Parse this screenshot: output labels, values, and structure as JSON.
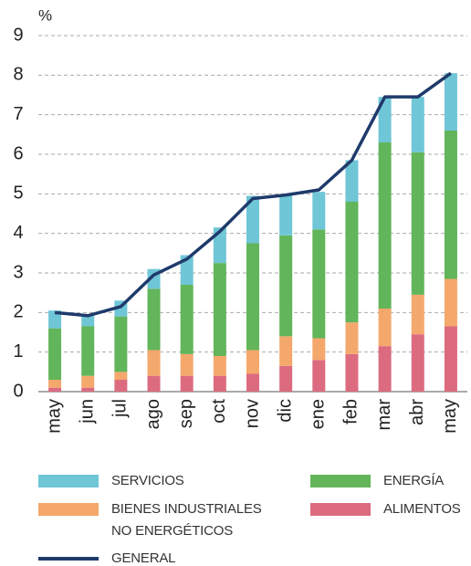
{
  "chart_data": {
    "type": "bar",
    "stacked": true,
    "y_unit": "%",
    "categories": [
      "may",
      "jun",
      "jul",
      "ago",
      "sep",
      "oct",
      "nov",
      "dic",
      "ene",
      "feb",
      "mar",
      "abr",
      "may"
    ],
    "ylim": [
      0,
      9
    ],
    "yticks": [
      0,
      1,
      2,
      3,
      4,
      5,
      6,
      7,
      8,
      9
    ],
    "grid": true,
    "series": [
      {
        "name": "ALIMENTOS",
        "color": "#dc6b80",
        "values": [
          0.1,
          0.1,
          0.3,
          0.4,
          0.4,
          0.4,
          0.45,
          0.65,
          0.8,
          0.95,
          1.15,
          1.45,
          1.65
        ]
      },
      {
        "name": "BIENES INDUSTRIALES\nNO ENERGÉTICOS",
        "color": "#f4a86c",
        "values": [
          0.2,
          0.3,
          0.2,
          0.65,
          0.55,
          0.5,
          0.6,
          0.75,
          0.55,
          0.8,
          0.95,
          1.0,
          1.2
        ]
      },
      {
        "name": "ENERGÍA",
        "color": "#62b55a",
        "values": [
          1.3,
          1.25,
          1.4,
          1.55,
          1.75,
          2.35,
          2.7,
          2.55,
          2.75,
          3.05,
          4.2,
          3.6,
          3.75
        ]
      },
      {
        "name": "SERVICIOS",
        "color": "#6fc6d6",
        "values": [
          0.45,
          0.3,
          0.4,
          0.5,
          0.75,
          0.9,
          1.2,
          1.0,
          0.95,
          1.05,
          1.15,
          1.4,
          1.45
        ]
      },
      {
        "name": "GENERAL",
        "type": "line",
        "color": "#1f3a6b",
        "values": [
          2.0,
          1.92,
          2.15,
          2.95,
          3.35,
          4.05,
          4.88,
          4.97,
          5.1,
          5.85,
          7.45,
          7.45,
          8.05
        ]
      }
    ]
  }
}
